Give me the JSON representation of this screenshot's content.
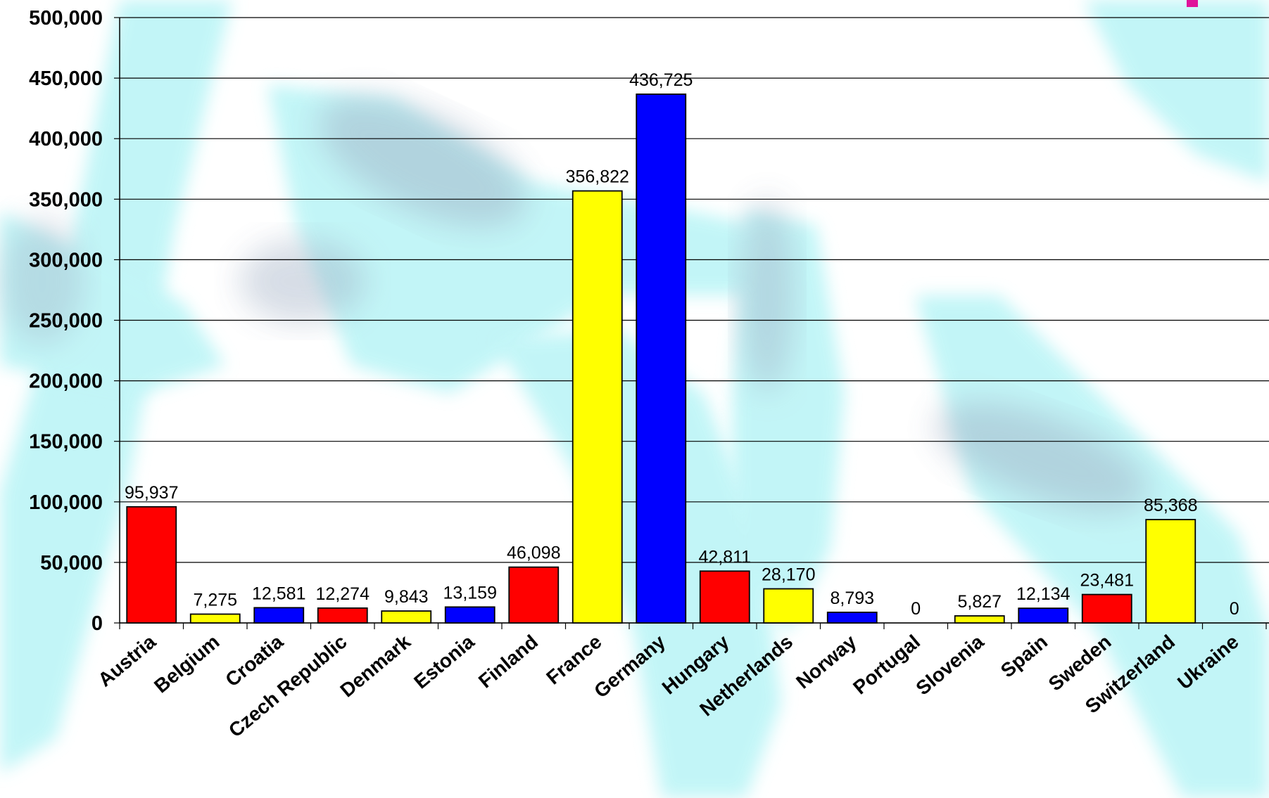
{
  "chart_data": {
    "type": "bar",
    "title": "",
    "xlabel": "",
    "ylabel": "",
    "ylim": [
      0,
      500000
    ],
    "y_ticks": [
      0,
      50000,
      100000,
      150000,
      200000,
      250000,
      300000,
      350000,
      400000,
      450000,
      500000
    ],
    "y_tick_labels": [
      "0",
      "50,000",
      "100,000",
      "150,000",
      "200,000",
      "250,000",
      "300,000",
      "350,000",
      "400,000",
      "450,000",
      "500,000"
    ],
    "grid": true,
    "legend": "none",
    "categories": [
      "Austria",
      "Belgium",
      "Croatia",
      "Czech Republic",
      "Denmark",
      "Estonia",
      "Finland",
      "France",
      "Germany",
      "Hungary",
      "Netherlands",
      "Norway",
      "Portugal",
      "Slovenia",
      "Spain",
      "Sweden",
      "Switzerland",
      "Ukraine"
    ],
    "values": [
      95937,
      7275,
      12581,
      12274,
      9843,
      13159,
      46098,
      356822,
      436725,
      42811,
      28170,
      8793,
      0,
      5827,
      12134,
      23481,
      85368,
      0
    ],
    "value_labels": [
      "95,937",
      "7,275",
      "12,581",
      "12,274",
      "9,843",
      "13,159",
      "46,098",
      "356,822",
      "436,725",
      "42,811",
      "28,170",
      "8,793",
      "0",
      "5,827",
      "12,134",
      "23,481",
      "85,368",
      "0"
    ],
    "bar_colors": [
      "#ff0000",
      "#ffff00",
      "#0000ff",
      "#ff0000",
      "#ffff00",
      "#0000ff",
      "#ff0000",
      "#ffff00",
      "#0000ff",
      "#ff0000",
      "#ffff00",
      "#0000ff",
      "#ff0000",
      "#ffff00",
      "#0000ff",
      "#ff0000",
      "#ffff00",
      "#0000ff"
    ]
  },
  "colors": {
    "grid": "#000000",
    "watermark": "#b8f4f6",
    "watermark_dark": "#8a9cb6",
    "corner_accent": "#e0139a"
  }
}
